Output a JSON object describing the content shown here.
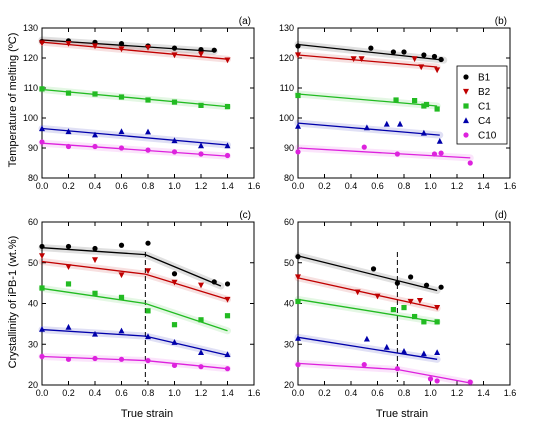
{
  "figure": {
    "ylabel_top": "Temperature of melting (ºC)",
    "ylabel_bottom": "Crystallinity of iPB-1 (wt.%)",
    "xlabel_left": "True strain",
    "xlabel_right": "True strain"
  },
  "legend": [
    {
      "name": "B1",
      "color": "#000000",
      "marker": "circle"
    },
    {
      "name": "B2",
      "color": "#c00000",
      "marker": "triangle-down"
    },
    {
      "name": "C1",
      "color": "#22bb22",
      "marker": "square"
    },
    {
      "name": "C4",
      "color": "#0000aa",
      "marker": "triangle-up"
    },
    {
      "name": "C10",
      "color": "#dd22dd",
      "marker": "circle"
    }
  ],
  "chart_data": [
    {
      "panel": "(a)",
      "type": "scatter",
      "xlim": [
        0,
        1.6
      ],
      "ylim": [
        80,
        130
      ],
      "xticks": [
        0.0,
        0.2,
        0.4,
        0.6,
        0.8,
        1.0,
        1.2,
        1.4,
        1.6
      ],
      "yticks": [
        80,
        90,
        100,
        110,
        120,
        130
      ],
      "series": [
        {
          "name": "B1",
          "x": [
            0,
            0.2,
            0.4,
            0.6,
            0.8,
            1.0,
            1.2,
            1.3
          ],
          "y": [
            125.5,
            125.7,
            125.2,
            124.8,
            124.0,
            123.3,
            122.8,
            122.6
          ],
          "fit": [
            [
              0,
              126.0
            ],
            [
              1.3,
              122.2
            ]
          ]
        },
        {
          "name": "B2",
          "x": [
            0,
            0.2,
            0.4,
            0.6,
            0.8,
            1.0,
            1.2,
            1.4
          ],
          "y": [
            125.0,
            124.8,
            124.0,
            123.0,
            123.5,
            121.0,
            121.3,
            119.3
          ],
          "fit": [
            [
              0,
              125.3
            ],
            [
              1.4,
              119.6
            ]
          ]
        },
        {
          "name": "C1",
          "x": [
            0,
            0.2,
            0.4,
            0.6,
            0.8,
            1.0,
            1.2,
            1.4
          ],
          "y": [
            109.7,
            108.3,
            108.0,
            107.0,
            106.0,
            105.3,
            104.2,
            103.8
          ],
          "fit": [
            [
              0,
              109.5
            ],
            [
              1.4,
              103.8
            ]
          ]
        },
        {
          "name": "C4",
          "x": [
            0,
            0.2,
            0.4,
            0.6,
            0.8,
            1.0,
            1.2,
            1.4
          ],
          "y": [
            96.5,
            95.5,
            94.4,
            95.5,
            95.4,
            92.5,
            90.8,
            90.8
          ],
          "fit": [
            [
              0,
              96.5
            ],
            [
              1.4,
              91.0
            ]
          ]
        },
        {
          "name": "C10",
          "x": [
            0,
            0.2,
            0.4,
            0.6,
            0.8,
            1.0,
            1.2,
            1.4
          ],
          "y": [
            92.0,
            90.5,
            90.5,
            90.0,
            89.3,
            88.7,
            88.0,
            87.5
          ],
          "fit": [
            [
              0,
              91.6
            ],
            [
              1.4,
              87.3
            ]
          ]
        }
      ]
    },
    {
      "panel": "(b)",
      "type": "scatter",
      "xlim": [
        0,
        1.6
      ],
      "ylim": [
        80,
        130
      ],
      "xticks": [
        0.0,
        0.2,
        0.4,
        0.6,
        0.8,
        1.0,
        1.2,
        1.4,
        1.6
      ],
      "yticks": [
        80,
        90,
        100,
        110,
        120,
        130
      ],
      "series": [
        {
          "name": "B1",
          "x": [
            0,
            0.55,
            0.72,
            0.8,
            0.95,
            1.03,
            1.08
          ],
          "y": [
            124.0,
            123.3,
            122.0,
            122.0,
            121.0,
            120.5,
            119.5
          ],
          "fit": [
            [
              0,
              124.5
            ],
            [
              1.1,
              119.3
            ]
          ]
        },
        {
          "name": "B2",
          "x": [
            0,
            0.42,
            0.48,
            0.88,
            0.93,
            1.05
          ],
          "y": [
            121.0,
            119.7,
            119.7,
            119.7,
            117.0,
            116.0
          ],
          "fit": [
            [
              0,
              121.0
            ],
            [
              1.05,
              117.0
            ]
          ]
        },
        {
          "name": "C1",
          "x": [
            0,
            0.74,
            0.88,
            0.95,
            0.97,
            1.05
          ],
          "y": [
            107.5,
            106.0,
            105.8,
            104.0,
            104.5,
            103.0
          ],
          "fit": [
            [
              0,
              108.0
            ],
            [
              1.05,
              104.0
            ]
          ]
        },
        {
          "name": "C4",
          "x": [
            0,
            0.52,
            0.67,
            0.77,
            0.95,
            1.07
          ],
          "y": [
            97.3,
            96.8,
            98.0,
            98.0,
            95.0,
            92.3
          ],
          "fit": [
            [
              0,
              98.3
            ],
            [
              1.07,
              94.3
            ]
          ]
        },
        {
          "name": "C10",
          "x": [
            0,
            0.5,
            0.75,
            1.03,
            1.08,
            1.3
          ],
          "y": [
            88.7,
            90.3,
            88.0,
            88.0,
            88.3,
            85.0
          ],
          "fit": [
            [
              0,
              90.0
            ],
            [
              1.3,
              86.7
            ]
          ]
        }
      ]
    },
    {
      "panel": "(c)",
      "type": "scatter",
      "xlim": [
        0,
        1.6
      ],
      "ylim": [
        20,
        60
      ],
      "xticks": [
        0.0,
        0.2,
        0.4,
        0.6,
        0.8,
        1.0,
        1.2,
        1.4,
        1.6
      ],
      "yticks": [
        20,
        30,
        40,
        50,
        60
      ],
      "vline_x": 0.78,
      "series": [
        {
          "name": "B1",
          "x": [
            0,
            0.2,
            0.4,
            0.6,
            0.8,
            1.0,
            1.3,
            1.4
          ],
          "y": [
            54.0,
            54.0,
            53.5,
            54.3,
            54.8,
            47.3,
            45.3,
            44.8
          ],
          "fit": [
            [
              0,
              53.7
            ],
            [
              0.78,
              52.0
            ],
            [
              1.35,
              44.3
            ]
          ]
        },
        {
          "name": "B2",
          "x": [
            0,
            0.2,
            0.4,
            0.6,
            0.8,
            1.0,
            1.2,
            1.4
          ],
          "y": [
            51.7,
            49.0,
            50.7,
            47.0,
            48.0,
            45.2,
            44.5,
            41.0
          ],
          "fit": [
            [
              0,
              50.3
            ],
            [
              0.78,
              47.2
            ],
            [
              1.4,
              41.0
            ]
          ]
        },
        {
          "name": "C1",
          "x": [
            0,
            0.2,
            0.4,
            0.6,
            0.8,
            1.0,
            1.2,
            1.4
          ],
          "y": [
            43.8,
            44.8,
            42.5,
            41.5,
            38.2,
            34.8,
            36.0,
            37.0
          ],
          "fit": [
            [
              0,
              43.7
            ],
            [
              0.78,
              40.0
            ],
            [
              1.4,
              33.3
            ]
          ]
        },
        {
          "name": "C4",
          "x": [
            0,
            0.2,
            0.4,
            0.6,
            0.8,
            1.0,
            1.2,
            1.4
          ],
          "y": [
            33.7,
            34.2,
            32.5,
            33.3,
            31.9,
            30.5,
            28.0,
            27.5
          ],
          "fit": [
            [
              0,
              33.6
            ],
            [
              0.78,
              32.0
            ],
            [
              1.4,
              27.3
            ]
          ]
        },
        {
          "name": "C10",
          "x": [
            0,
            0.2,
            0.4,
            0.6,
            0.8,
            1.0,
            1.2,
            1.4
          ],
          "y": [
            27.0,
            26.3,
            26.5,
            26.3,
            26.0,
            24.8,
            24.5,
            24.0
          ],
          "fit": [
            [
              0,
              27.0
            ],
            [
              0.78,
              26.0
            ],
            [
              1.4,
              24.0
            ]
          ]
        }
      ]
    },
    {
      "panel": "(d)",
      "type": "scatter",
      "xlim": [
        0,
        1.6
      ],
      "ylim": [
        20,
        60
      ],
      "xticks": [
        0.0,
        0.2,
        0.4,
        0.6,
        0.8,
        1.0,
        1.2,
        1.4,
        1.6
      ],
      "yticks": [
        20,
        30,
        40,
        50,
        60
      ],
      "vline_x": 0.75,
      "series": [
        {
          "name": "B1",
          "x": [
            0,
            0.57,
            0.75,
            0.85,
            0.97,
            1.08
          ],
          "y": [
            51.5,
            48.5,
            45.0,
            46.5,
            44.5,
            44.0
          ],
          "fit": [
            [
              0,
              51.7
            ],
            [
              1.05,
              43.2
            ]
          ]
        },
        {
          "name": "B2",
          "x": [
            0,
            0.45,
            0.6,
            0.85,
            0.92,
            1.05
          ],
          "y": [
            46.5,
            42.8,
            41.8,
            40.5,
            40.7,
            39.0
          ],
          "fit": [
            [
              0,
              46.3
            ],
            [
              1.05,
              38.8
            ]
          ]
        },
        {
          "name": "C1",
          "x": [
            0,
            0.72,
            0.8,
            0.88,
            0.95,
            1.05
          ],
          "y": [
            40.5,
            38.5,
            39.0,
            36.8,
            35.5,
            35.5
          ],
          "fit": [
            [
              0,
              41.0
            ],
            [
              1.05,
              35.5
            ]
          ]
        },
        {
          "name": "C4",
          "x": [
            0,
            0.52,
            0.67,
            0.8,
            0.95,
            1.05
          ],
          "y": [
            31.5,
            31.3,
            29.3,
            28.3,
            27.7,
            28.0
          ],
          "fit": [
            [
              0,
              31.7
            ],
            [
              1.05,
              26.3
            ]
          ]
        },
        {
          "name": "C10",
          "x": [
            0,
            0.5,
            0.75,
            1.0,
            1.05,
            1.3
          ],
          "y": [
            25.0,
            25.0,
            24.0,
            21.5,
            21.0,
            20.7
          ],
          "fit": [
            [
              0,
              25.3
            ],
            [
              0.75,
              23.8
            ],
            [
              1.3,
              20.5
            ]
          ]
        }
      ]
    }
  ]
}
